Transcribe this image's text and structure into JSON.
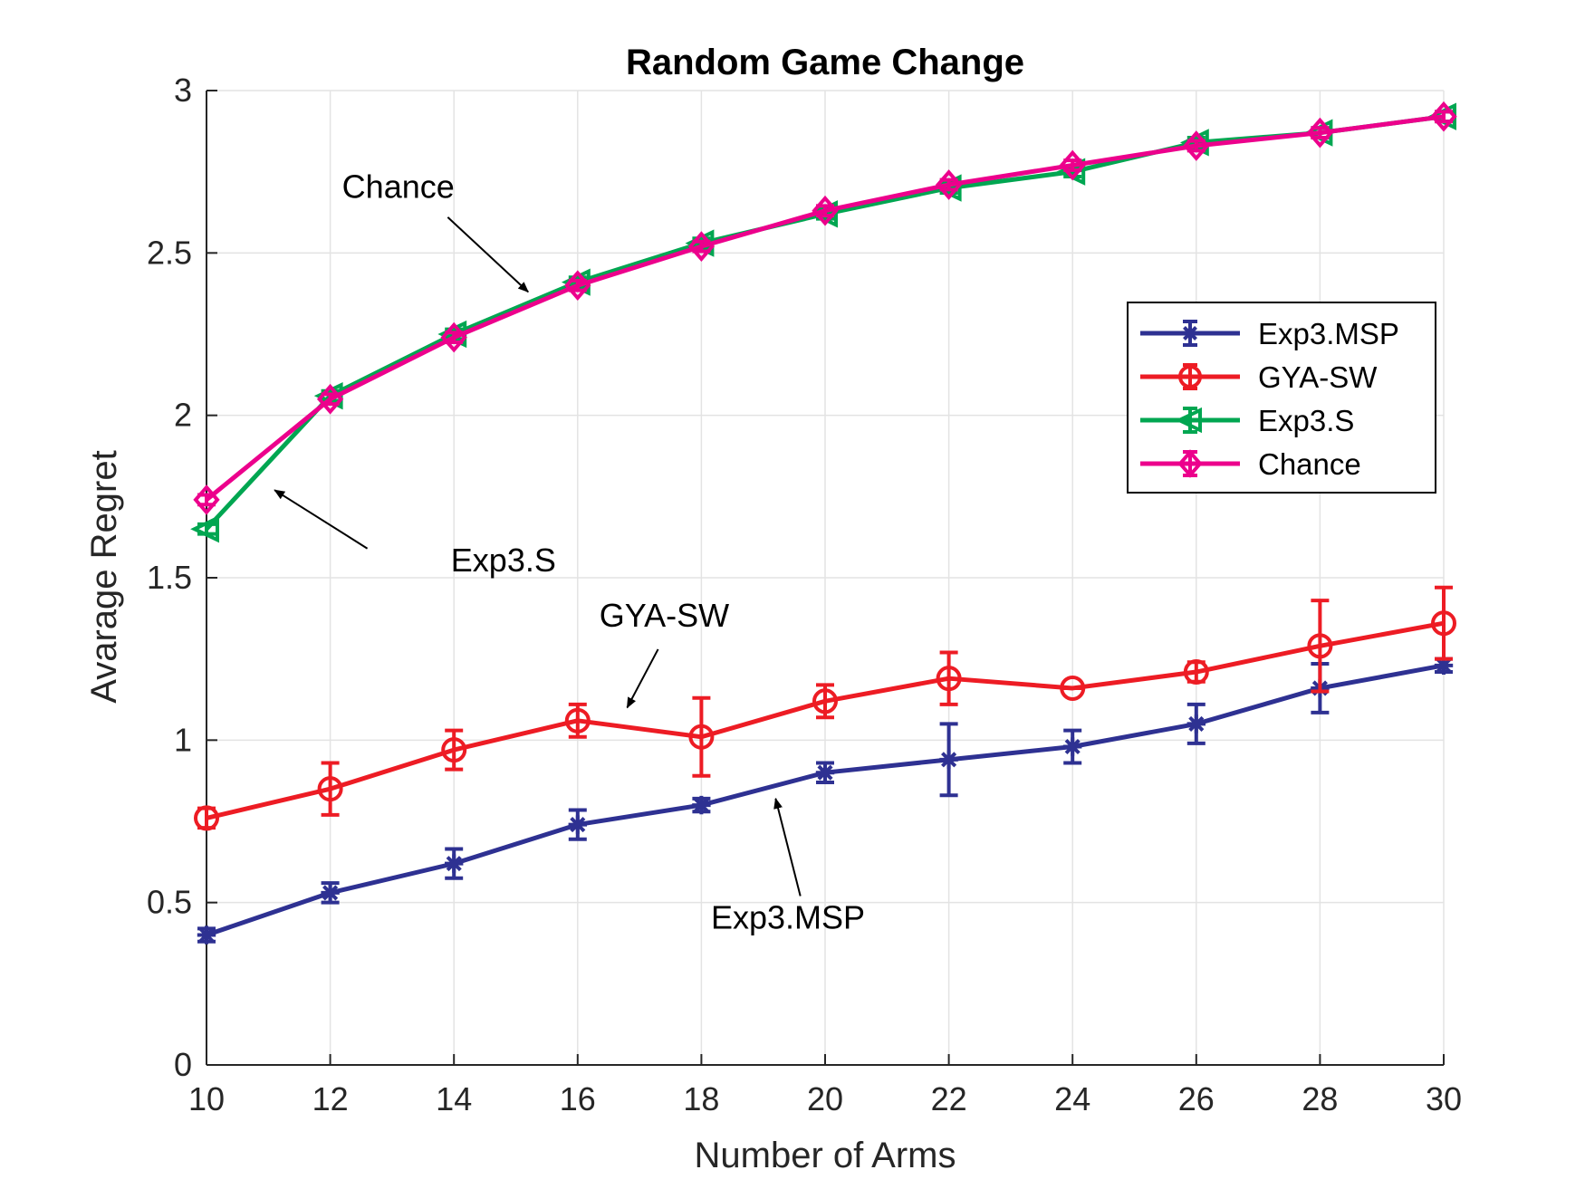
{
  "chart_data": {
    "type": "line",
    "title": "Random Game Change",
    "xlabel": "Number of Arms",
    "ylabel": "Avarage Regret",
    "x": [
      10,
      12,
      14,
      16,
      18,
      20,
      22,
      24,
      26,
      28,
      30
    ],
    "xlim": [
      10,
      30
    ],
    "ylim": [
      0,
      3
    ],
    "xticks": [
      "10",
      "12",
      "14",
      "16",
      "18",
      "20",
      "22",
      "24",
      "26",
      "28",
      "30"
    ],
    "yticks": [
      "0",
      "0.5",
      "1",
      "1.5",
      "2",
      "2.5",
      "3"
    ],
    "xtick_values": [
      10,
      12,
      14,
      16,
      18,
      20,
      22,
      24,
      26,
      28,
      30
    ],
    "ytick_values": [
      0,
      0.5,
      1,
      1.5,
      2,
      2.5,
      3
    ],
    "grid": true,
    "legend_position": "upper-right",
    "series": [
      {
        "name": "Exp3.MSP",
        "color": "#2e3192",
        "marker": "star",
        "values": [
          0.4,
          0.53,
          0.62,
          0.74,
          0.8,
          0.9,
          0.94,
          0.98,
          1.05,
          1.16,
          1.23
        ],
        "errors": [
          0.02,
          0.03,
          0.045,
          0.045,
          0.02,
          0.03,
          0.11,
          0.05,
          0.06,
          0.075,
          0.02
        ]
      },
      {
        "name": "GYA-SW",
        "color": "#ed1c24",
        "marker": "circle",
        "values": [
          0.76,
          0.85,
          0.97,
          1.06,
          1.01,
          1.12,
          1.19,
          1.16,
          1.21,
          1.29,
          1.36
        ],
        "errors": [
          0.03,
          0.08,
          0.06,
          0.05,
          0.12,
          0.05,
          0.08,
          0.0,
          0.03,
          0.14,
          0.11
        ]
      },
      {
        "name": "Exp3.S",
        "color": "#00a651",
        "marker": "triangle-left",
        "values": [
          1.65,
          2.06,
          2.25,
          2.41,
          2.53,
          2.62,
          2.7,
          2.75,
          2.84,
          2.87,
          2.92
        ],
        "errors": [
          0.015,
          0.015,
          0.015,
          0.015,
          0.015,
          0.015,
          0.015,
          0.015,
          0.015,
          0.015,
          0.015
        ]
      },
      {
        "name": "Chance",
        "color": "#ec008c",
        "marker": "diamond",
        "values": [
          1.74,
          2.05,
          2.24,
          2.4,
          2.52,
          2.63,
          2.71,
          2.77,
          2.83,
          2.87,
          2.92
        ],
        "errors": [
          0.015,
          0.015,
          0.015,
          0.015,
          0.015,
          0.015,
          0.015,
          0.015,
          0.015,
          0.015,
          0.015
        ]
      }
    ],
    "annotations": [
      {
        "text": "Chance",
        "text_x": 13.1,
        "text_y": 2.67,
        "tail_x": 13.9,
        "tail_y": 2.61,
        "head_x": 15.2,
        "head_y": 2.38
      },
      {
        "text": "Exp3.S",
        "text_x": 14.8,
        "text_y": 1.52,
        "tail_x": 12.6,
        "tail_y": 1.59,
        "head_x": 11.1,
        "head_y": 1.77
      },
      {
        "text": "GYA-SW",
        "text_x": 17.4,
        "text_y": 1.35,
        "tail_x": 17.3,
        "tail_y": 1.28,
        "head_x": 16.8,
        "head_y": 1.1
      },
      {
        "text": "Exp3.MSP",
        "text_x": 19.4,
        "text_y": 0.42,
        "tail_x": 19.6,
        "tail_y": 0.52,
        "head_x": 19.2,
        "head_y": 0.82
      }
    ]
  }
}
